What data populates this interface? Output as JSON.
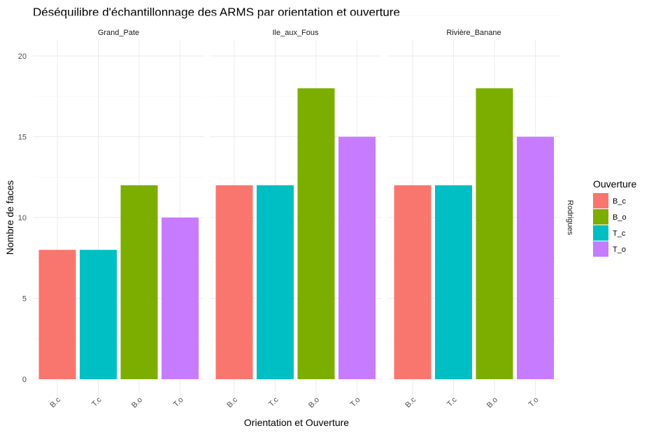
{
  "chart_data": {
    "type": "bar",
    "title": "Déséquilibre d'échantillonnage des ARMS par orientation et ouverture",
    "xlabel": "Orientation et Ouverture",
    "ylabel": "Nombre de faces",
    "ylim": [
      0,
      20
    ],
    "yticks": [
      0,
      5,
      10,
      15,
      20
    ],
    "categories": [
      "B.c",
      "T.c",
      "B.o",
      "T.o"
    ],
    "fill_by_category": [
      "B_c",
      "T_c",
      "B_o",
      "T_o"
    ],
    "facet_row_label": "Rodrigues",
    "grid": true,
    "legend_position": "right",
    "legend": {
      "title": "Ouverture",
      "entries": [
        {
          "name": "B_c",
          "color": "#F8766D"
        },
        {
          "name": "B_o",
          "color": "#7CAE00"
        },
        {
          "name": "T_c",
          "color": "#00BFC4"
        },
        {
          "name": "T_o",
          "color": "#C77CFF"
        }
      ]
    },
    "facets": [
      {
        "name": "Grand_Pate",
        "values": [
          8,
          8,
          12,
          10
        ]
      },
      {
        "name": "Ile_aux_Fous",
        "values": [
          12,
          12,
          18,
          15
        ]
      },
      {
        "name": "Rivière_Banane",
        "values": [
          12,
          12,
          18,
          15
        ]
      }
    ]
  }
}
